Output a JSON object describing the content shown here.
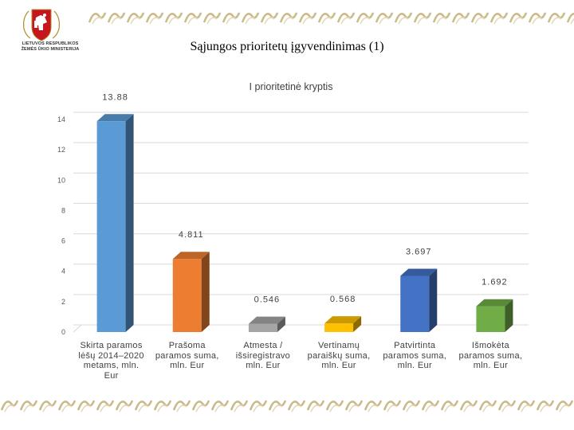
{
  "slide": {
    "title": "Sąjungos prioritetų įgyvendinimas (1)",
    "logo_caption": [
      "LIETUVOS RESPUBLIKOS",
      "ŽEMĖS ŪKIO MINISTERIJA"
    ]
  },
  "chart_data": {
    "type": "bar",
    "title": "I prioritetinė kryptis",
    "categories": [
      [
        "Skirta paramos",
        "lėšų 2014–2020",
        "metams, mln.",
        "Eur"
      ],
      [
        "Prašoma",
        "paramos suma,",
        "mln. Eur"
      ],
      [
        "Atmesta /",
        "išsiregistravo",
        "mln. Eur"
      ],
      [
        "Vertinamų",
        "paraiškų suma,",
        "mln. Eur"
      ],
      [
        "Patvirtinta",
        "paramos suma,",
        "mln. Eur"
      ],
      [
        "Išmokėta",
        "paramos suma,",
        "mln. Eur"
      ]
    ],
    "values": [
      13.88,
      4.811,
      0.546,
      0.568,
      3.697,
      1.692
    ],
    "value_labels": [
      "13.88",
      "4.811",
      "0.546",
      "0.568",
      "3.697",
      "1.692"
    ],
    "colors": [
      "#5b9bd5",
      "#ed7d31",
      "#a5a5a5",
      "#ffc000",
      "#4472c4",
      "#70ad47"
    ],
    "ylim": [
      0,
      14
    ],
    "yticks": [
      0,
      2,
      4,
      6,
      8,
      10,
      12,
      14
    ],
    "grid": true,
    "legend": "none"
  }
}
